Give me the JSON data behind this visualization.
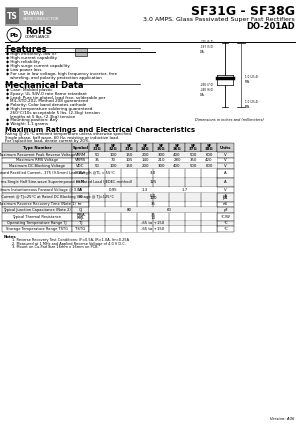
{
  "title": "SF31G - SF38G",
  "subtitle": "3.0 AMPS. Glass Passivated Super Fast Rectifiers",
  "package": "DO-201AD",
  "bg_color": "#ffffff",
  "features": [
    "High efficiency, low VF",
    "High current capability",
    "High reliability",
    "High surge current capability",
    "Low power loss",
    "For use in low voltage, high frequency invertor, free wheeling, and polarity protection application"
  ],
  "mechanical": [
    "Case: Molded plastic",
    "Epoxy: UL 94V-0 rate flame retardant",
    "Lead: Pure tin plated, lead free, solderable per MIL-STD-202, Method 208 guaranteed",
    "Polarity: Color band denotes cathode",
    "High temperature soldering guaranteed 260°C/10s acceptable 5 lbs. (2.3kg) tension lengths at 5 lbs. (2.3kg) tension",
    "Mounting position: Any",
    "Weight: 1.1 grams"
  ],
  "rating_text1": "Rating @ 25 °C ambient temperature unless otherwise specified.",
  "rating_text2": "Single phase, half wave, 60 Hz, resistive or inductive load.",
  "rating_text3": "For capacitive load, derate current by 20%.",
  "table_header": [
    "Type Number",
    "Symbol",
    "SF\n31G",
    "SF\n32G",
    "SF\n33G",
    "SF\n34G",
    "SF\n35G",
    "SF\n36G",
    "SF\n37G",
    "SF\n38G",
    "Units"
  ],
  "table_rows": [
    [
      "Maximum Recurrent Peak Reverse Voltage",
      "VRRM",
      "50",
      "100",
      "150",
      "200",
      "300",
      "400",
      "500",
      "600",
      "V"
    ],
    [
      "Maximum RMS Voltage",
      "VRMS",
      "35",
      "70",
      "105",
      "140",
      "210",
      "280",
      "350",
      "420",
      "V"
    ],
    [
      "Maximum DC Blocking Voltage",
      "VDC",
      "50",
      "100",
      "150",
      "200",
      "300",
      "400",
      "500",
      "600",
      "V"
    ],
    [
      "Maximum Average Forward Rectified Current, .375 (9.5mm) Lead Length @TL = 55°C",
      "IF(AV)",
      "",
      "",
      "",
      "3.0",
      "",
      "",
      "",
      "",
      "A"
    ],
    [
      "Peak Forward Surge Current, 8.3 ms Single Half Sine-wave Superimposed on Rated Load (JEDEC method)",
      "IFSM",
      "",
      "",
      "",
      "125",
      "",
      "",
      "",
      "",
      "A"
    ],
    [
      "Maximum Instantaneous Forward Voltage @ 3.0A",
      "VF",
      "0.95",
      "",
      "",
      "1.3",
      "",
      "",
      "1.7",
      "",
      "V"
    ],
    [
      "Maximum DC Reverse Current @ TJ=25°C at Rated DC Blocking Voltage @ TJ=125°C",
      "IR",
      "",
      "",
      "",
      "5.0\n100",
      "",
      "",
      "",
      "",
      "μA\nμA"
    ],
    [
      "Maximum Reverse Recovery Time (Note 1)",
      "trr",
      "",
      "",
      "",
      "35",
      "",
      "",
      "",
      "",
      "nS"
    ],
    [
      "Typical Junction Capacitance (Note 2)",
      "CJ",
      "",
      "80",
      "",
      "",
      "",
      "60",
      "",
      "",
      "pF"
    ],
    [
      "Typical Thermal Resistance",
      "RθJA\nRθJL",
      "",
      "",
      "",
      "35\n10",
      "",
      "",
      "",
      "",
      "°C/W"
    ],
    [
      "Operating Temperature Range TJ",
      "TJ",
      "",
      "",
      "",
      "-65 to +150",
      "",
      "",
      "",
      "",
      "°C"
    ],
    [
      "Storage Temperature Range TSTG",
      "TSTG",
      "",
      "",
      "",
      "-65 to +150",
      "",
      "",
      "",
      "",
      "°C"
    ]
  ],
  "notes": [
    "1. Reverse Recovery Test Conditions: IF=0.5A, IR=1.0A, Irr=0.25A",
    "2. Measured at 1 MHz and Applied Reverse Voltage of 4.0 V D.C.",
    "3. Mount on Cu-Pad Size 16mm x 16mm on PCB."
  ],
  "version": "Version: A06"
}
